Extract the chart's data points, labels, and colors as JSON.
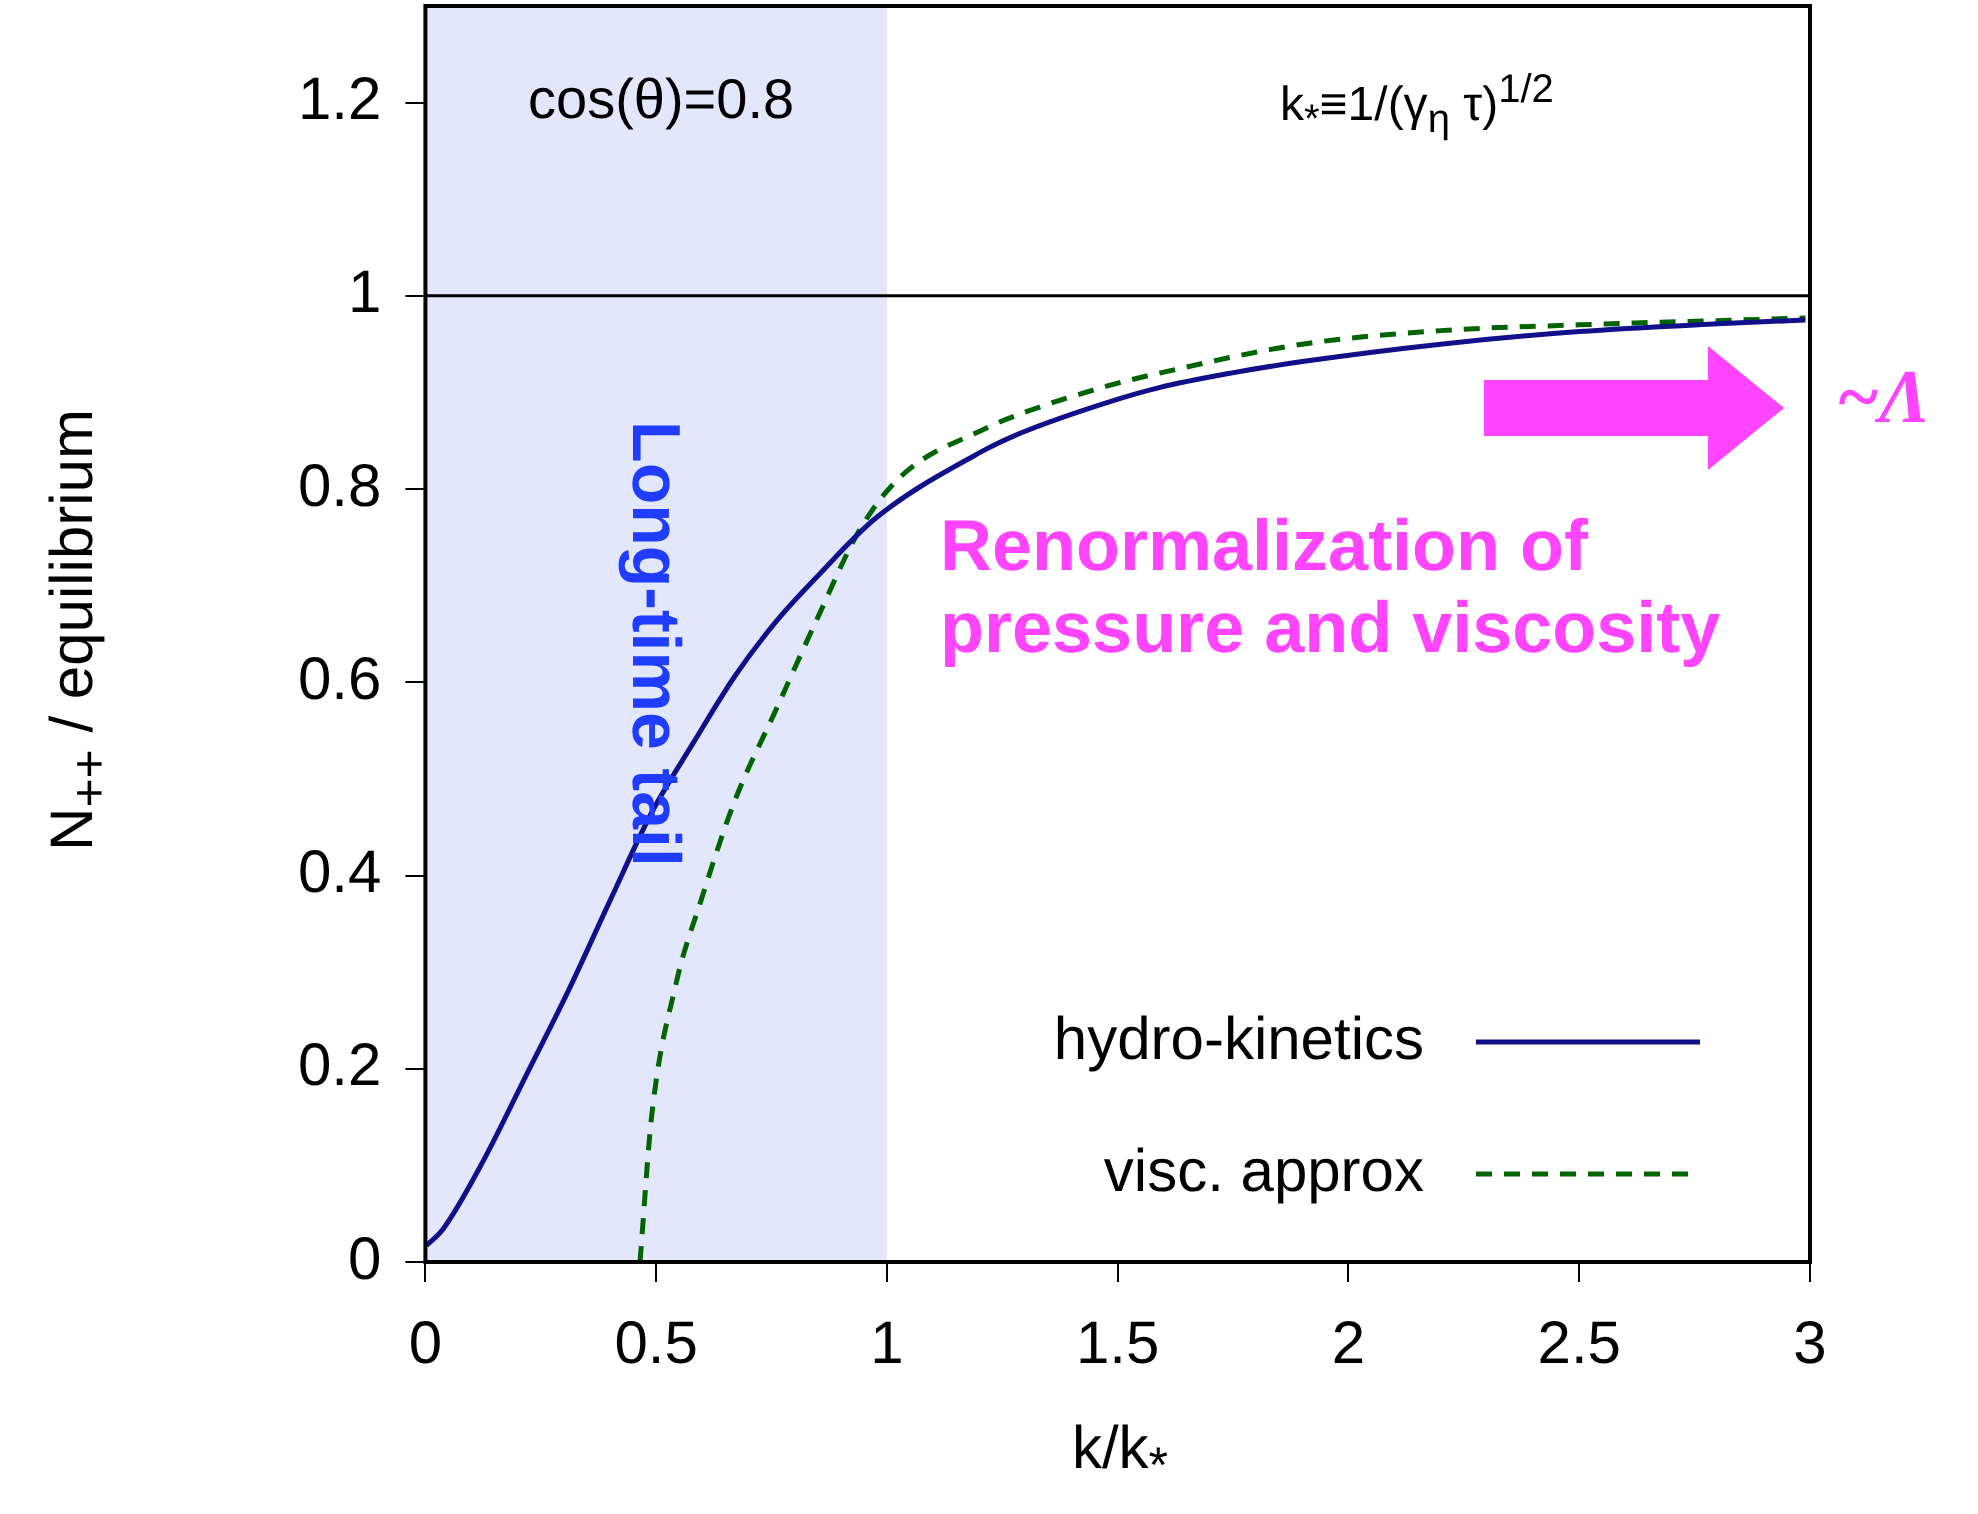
{
  "chart_data": {
    "type": "line",
    "xlabel": "k/k$_{*}$",
    "ylabel": "N$_{++}$ / equilibrium",
    "xlim": [
      0,
      3
    ],
    "ylim": [
      0,
      1.3
    ],
    "xticks": [
      0,
      0.5,
      1,
      1.5,
      2,
      2.5,
      3
    ],
    "yticks": [
      0,
      0.2,
      0.4,
      0.6,
      0.8,
      1,
      1.2
    ],
    "legend": "bottom right",
    "series": [
      {
        "name": "hydro-kinetics",
        "color": "#10108a",
        "line_style": "solid",
        "x": [
          0.002,
          0.038,
          0.128,
          0.218,
          0.308,
          0.4,
          0.49,
          0.58,
          0.67,
          0.76,
          0.85,
          0.976,
          1.21,
          1.29,
          1.48,
          1.59,
          1.745,
          1.9,
          2.2,
          2.5,
          2.8,
          2.99
        ],
        "values": [
          0.017,
          0.034,
          0.107,
          0.193,
          0.279,
          0.374,
          0.465,
          0.537,
          0.606,
          0.663,
          0.71,
          0.77,
          0.84,
          0.858,
          0.89,
          0.905,
          0.92,
          0.932,
          0.95,
          0.963,
          0.971,
          0.975
        ]
      },
      {
        "name": "visc. approx",
        "color": "#006400",
        "line_style": "dashed",
        "x": [
          0.465,
          0.49,
          0.543,
          0.597,
          0.67,
          0.76,
          0.85,
          0.94,
          1.03,
          1.21,
          1.29,
          1.48,
          1.59,
          1.9,
          2.2,
          2.5,
          2.99
        ],
        "values": [
          0,
          0.15,
          0.288,
          0.374,
          0.477,
          0.572,
          0.667,
          0.757,
          0.813,
          0.862,
          0.878,
          0.907,
          0.92,
          0.95,
          0.964,
          0.97,
          0.977
        ]
      }
    ],
    "ref_lines": [
      {
        "axis": "y",
        "value": 1,
        "color": "#000000"
      }
    ],
    "bands": [
      {
        "axis": "x",
        "from": 0,
        "to": 1,
        "color": "#e3e7fb"
      }
    ],
    "annotations": [
      "cos(θ)=0.8",
      "k$_{*}$≡1/(γ$_{η}$ τ)$^{1/2}$",
      "Long-time tail",
      "Renormalization of\npressure and viscosity",
      "~Λ"
    ]
  }
}
